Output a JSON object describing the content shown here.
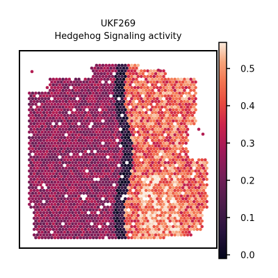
{
  "chart_data": {
    "type": "heatmap",
    "title_line1": "UKF269",
    "title_line2": "Hedgehog Signaling activity",
    "xlabel": "",
    "ylabel": "",
    "grid": false,
    "colormap": "rocket",
    "colorbar": {
      "min": -0.01,
      "max": 0.57,
      "ticks": [
        0.0,
        0.1,
        0.2,
        0.3,
        0.4,
        0.5
      ],
      "tick_labels": [
        "0.0",
        "0.1",
        "0.2",
        "0.3",
        "0.4",
        "0.5"
      ]
    },
    "regions": [
      {
        "name": "left",
        "value_range": [
          0.18,
          0.32
        ]
      },
      {
        "name": "boundary",
        "value_range": [
          0.0,
          0.12
        ]
      },
      {
        "name": "right",
        "value_range": [
          0.32,
          0.55
        ]
      }
    ]
  }
}
